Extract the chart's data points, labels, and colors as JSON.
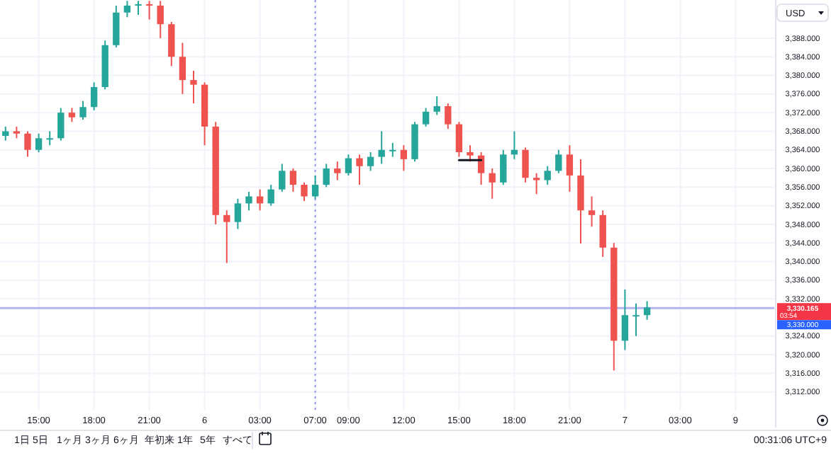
{
  "chart_data": {
    "type": "candlestick",
    "categories": [
      null,
      null,
      null,
      "15:00",
      null,
      null,
      null,
      null,
      "18:00",
      null,
      null,
      null,
      null,
      "21:00",
      null,
      null,
      null,
      null,
      "6",
      null,
      null,
      null,
      null,
      "03:00",
      null,
      null,
      null,
      null,
      "07:00",
      null,
      null,
      "09:00",
      null,
      null,
      null,
      null,
      "12:00",
      null,
      null,
      null,
      null,
      "15:00",
      null,
      null,
      null,
      null,
      "18:00",
      null,
      null,
      null,
      null,
      "21:00",
      null,
      null,
      null,
      null,
      "7",
      null,
      null,
      null,
      null,
      "03:00",
      null,
      null,
      null,
      null,
      "9",
      null,
      null,
      null
    ],
    "ohlc": [
      [
        3367,
        3369,
        3366,
        3368
      ],
      [
        3368,
        3369,
        3366.5,
        3367.5
      ],
      [
        3367.5,
        3368,
        3362.5,
        3364
      ],
      [
        3364,
        3367.5,
        3363.5,
        3366.5
      ],
      [
        3366.5,
        3368,
        3365,
        3366.5
      ],
      [
        3366.5,
        3373,
        3366,
        3372
      ],
      [
        3372,
        3373,
        3370,
        3371
      ],
      [
        3371,
        3374.5,
        3370.5,
        3373.2
      ],
      [
        3373.2,
        3378.5,
        3372.5,
        3377.5
      ],
      [
        3377.5,
        3387.5,
        3377,
        3386.5
      ],
      [
        3386.5,
        3395,
        3386,
        3393.5
      ],
      [
        3393.5,
        3396,
        3392.5,
        3395
      ],
      [
        3395,
        3396,
        3393,
        3395.3
      ],
      [
        3395.3,
        3396,
        3392,
        3395
      ],
      [
        3395,
        3396,
        3388,
        3391
      ],
      [
        3391,
        3391.5,
        3382,
        3384
      ],
      [
        3384,
        3387,
        3376,
        3379
      ],
      [
        3379,
        3381,
        3374,
        3378
      ],
      [
        3378,
        3378.5,
        3365,
        3369
      ],
      [
        3369,
        3370,
        3348,
        3350
      ],
      [
        3350,
        3351,
        3339.7,
        3348.5
      ],
      [
        3348.5,
        3353.5,
        3347,
        3352.5
      ],
      [
        3352.5,
        3355,
        3351,
        3354
      ],
      [
        3354,
        3355.5,
        3351,
        3352.5
      ],
      [
        3352.5,
        3356.5,
        3352,
        3355.5
      ],
      [
        3355.5,
        3361,
        3355,
        3359.5
      ],
      [
        3359.5,
        3360,
        3355,
        3356.5
      ],
      [
        3356.5,
        3357,
        3353,
        3354
      ],
      [
        3354,
        3358.5,
        3353.5,
        3356.5
      ],
      [
        3356.5,
        3361,
        3356,
        3360
      ],
      [
        3360,
        3361.5,
        3357.5,
        3359
      ],
      [
        3359,
        3363,
        3358.5,
        3362.2
      ],
      [
        3362.2,
        3363,
        3356.5,
        3360.5
      ],
      [
        3360.5,
        3363.5,
        3359.5,
        3362.5
      ],
      [
        3362.5,
        3368,
        3361,
        3364
      ],
      [
        3364,
        3365.5,
        3362.5,
        3364
      ],
      [
        3364,
        3365,
        3359.5,
        3362
      ],
      [
        3362,
        3370,
        3361.5,
        3369.5
      ],
      [
        3369.5,
        3373,
        3369,
        3372.2
      ],
      [
        3372.2,
        3375.5,
        3371.5,
        3373.4
      ],
      [
        3373.4,
        3374,
        3368.5,
        3369.5
      ],
      [
        3369.5,
        3370,
        3362.5,
        3363.5
      ],
      [
        3363.5,
        3365,
        3361.5,
        3362.8
      ],
      [
        3362.8,
        3363.5,
        3356.5,
        3359
      ],
      [
        3359,
        3360,
        3353.5,
        3357
      ],
      [
        3357,
        3364,
        3356.5,
        3363
      ],
      [
        3363,
        3368,
        3362,
        3364
      ],
      [
        3364,
        3364.5,
        3357,
        3358
      ],
      [
        3358,
        3359,
        3354.5,
        3357.5
      ],
      [
        3357.5,
        3360.5,
        3356.5,
        3359.5
      ],
      [
        3359.5,
        3364,
        3359,
        3363
      ],
      [
        3363,
        3365,
        3355,
        3358.5
      ],
      [
        3358.5,
        3362,
        3343.9,
        3351
      ],
      [
        3351,
        3354,
        3347.5,
        3350
      ],
      [
        3350,
        3351,
        3341,
        3343
      ],
      [
        3343,
        3344,
        3316.6,
        3323
      ],
      [
        3323,
        3334,
        3321,
        3328.5
      ],
      [
        3328.5,
        3331,
        3324,
        3328.5
      ],
      [
        3328.5,
        3331.5,
        3327.5,
        3330.165
      ],
      null,
      null,
      null,
      null,
      null,
      null,
      null,
      null,
      null,
      null,
      null
    ],
    "colors": [
      "#26a69a",
      "#ef5350",
      "#ef5350",
      "#26a69a",
      "#26a69a",
      "#26a69a",
      "#ef5350",
      "#26a69a",
      "#26a69a",
      "#26a69a",
      "#26a69a",
      "#26a69a",
      "#26a69a",
      "#ef5350",
      "#ef5350",
      "#ef5350",
      "#ef5350",
      "#ef5350",
      "#ef5350",
      "#ef5350",
      "#ef5350",
      "#26a69a",
      "#26a69a",
      "#ef5350",
      "#26a69a",
      "#26a69a",
      "#ef5350",
      "#ef5350",
      "#26a69a",
      "#26a69a",
      "#ef5350",
      "#26a69a",
      "#ef5350",
      "#26a69a",
      "#26a69a",
      "#26a69a",
      "#ef5350",
      "#26a69a",
      "#26a69a",
      "#26a69a",
      "#ef5350",
      "#ef5350",
      "#ef5350",
      "#ef5350",
      "#ef5350",
      "#26a69a",
      "#26a69a",
      "#ef5350",
      "#ef5350",
      "#26a69a",
      "#26a69a",
      "#ef5350",
      "#ef5350",
      "#ef5350",
      "#ef5350",
      "#ef5350",
      "#26a69a",
      "#26a69a",
      "#26a69a",
      null,
      null,
      null,
      null,
      null,
      null,
      null,
      null,
      null,
      null,
      null
    ],
    "series": [
      {
        "type": "line",
        "color": "#131722",
        "values": [
          null,
          null,
          null,
          null,
          null,
          null,
          null,
          null,
          null,
          null,
          null,
          null,
          null,
          null,
          null,
          null,
          null,
          null,
          null,
          null,
          null,
          null,
          null,
          null,
          null,
          null,
          null,
          null,
          null,
          null,
          null,
          null,
          null,
          null,
          null,
          null,
          null,
          null,
          null,
          null,
          null,
          3361.8,
          3361.8,
          3361.8,
          null,
          null,
          null,
          null,
          null,
          null,
          null,
          null,
          null,
          null,
          null,
          null,
          null,
          null,
          null,
          null,
          null,
          null,
          null,
          null,
          null,
          null,
          null,
          null,
          null,
          null
        ]
      }
    ],
    "ylim": [
      3308,
      3396.2
    ],
    "yticks": [
      {
        "value": 3312,
        "label": "3,312.000"
      },
      {
        "value": 3316,
        "label": "3,316.000"
      },
      {
        "value": 3320,
        "label": "3,320.000"
      },
      {
        "value": 3324,
        "label": "3,324.000"
      },
      {
        "value": 3332,
        "label": "3,332.000"
      },
      {
        "value": 3336,
        "label": "3,336.000"
      },
      {
        "value": 3340,
        "label": "3,340.000"
      },
      {
        "value": 3344,
        "label": "3,344.000"
      },
      {
        "value": 3348,
        "label": "3,348.000"
      },
      {
        "value": 3352,
        "label": "3,352.000"
      },
      {
        "value": 3356,
        "label": "3,356.000"
      },
      {
        "value": 3360,
        "label": "3,360.000"
      },
      {
        "value": 3364,
        "label": "3,364.000"
      },
      {
        "value": 3368,
        "label": "3,368.000"
      },
      {
        "value": 3372,
        "label": "3,372.000"
      },
      {
        "value": 3376,
        "label": "3,376.000"
      },
      {
        "value": 3380,
        "label": "3,380.000"
      },
      {
        "value": 3384,
        "label": "3,384.000"
      },
      {
        "value": 3388,
        "label": "3,388.000"
      }
    ],
    "grid": true,
    "ref_lines": [
      {
        "axis": "y",
        "value": 3330,
        "label": "3,330.000",
        "color": "#b2b5f0"
      },
      {
        "axis": "x",
        "value": "07:00",
        "color": "#9598e8",
        "line_style": "dotted"
      }
    ],
    "annotations": [
      "3,330.165",
      "03:54",
      "USD",
      "00:31:06 UTC+9",
      "1日",
      "5日",
      "1ヶ月",
      "3ヶ月",
      "6ヶ月",
      "年初来",
      "1年",
      "5年",
      "すべて"
    ]
  }
}
